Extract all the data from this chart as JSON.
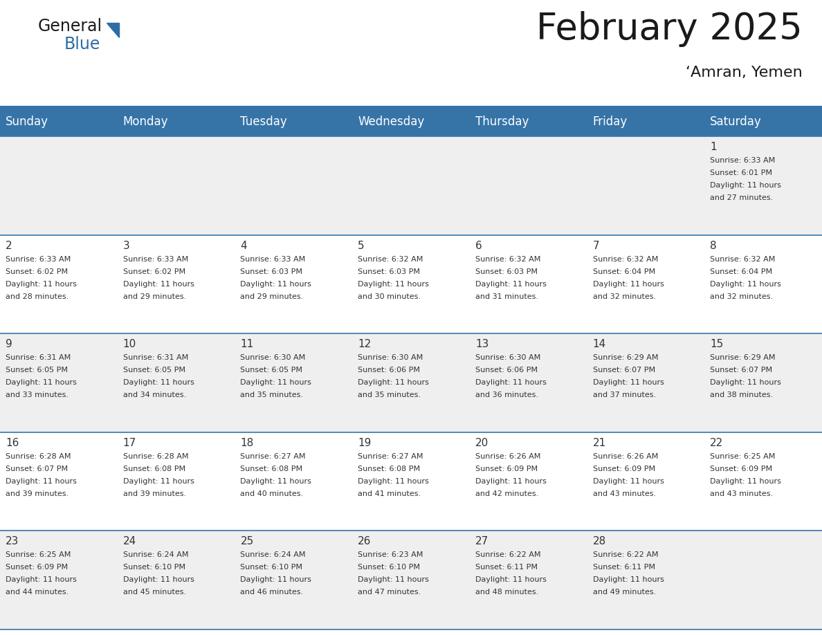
{
  "title": "February 2025",
  "subtitle": "‘Amran, Yemen",
  "days_of_week": [
    "Sunday",
    "Monday",
    "Tuesday",
    "Wednesday",
    "Thursday",
    "Friday",
    "Saturday"
  ],
  "header_bg": "#3674A8",
  "header_text": "#FFFFFF",
  "row_bg_gray": "#EFEFEF",
  "row_bg_white": "#FFFFFF",
  "cell_text": "#333333",
  "day_num_color": "#333333",
  "border_color": "#3674A8",
  "title_color": "#1a1a1a",
  "subtitle_color": "#1a1a1a",
  "logo_color_general": "#1a1a1a",
  "logo_color_blue": "#2E6DA4",
  "logo_triangle_color": "#2E6DA4",
  "calendar": [
    [
      null,
      null,
      null,
      null,
      null,
      null,
      1
    ],
    [
      2,
      3,
      4,
      5,
      6,
      7,
      8
    ],
    [
      9,
      10,
      11,
      12,
      13,
      14,
      15
    ],
    [
      16,
      17,
      18,
      19,
      20,
      21,
      22
    ],
    [
      23,
      24,
      25,
      26,
      27,
      28,
      null
    ]
  ],
  "sun_data": {
    "1": {
      "sunrise": "6:33 AM",
      "sunset": "6:01 PM",
      "daylight": "11 hours and 27 minutes."
    },
    "2": {
      "sunrise": "6:33 AM",
      "sunset": "6:02 PM",
      "daylight": "11 hours and 28 minutes."
    },
    "3": {
      "sunrise": "6:33 AM",
      "sunset": "6:02 PM",
      "daylight": "11 hours and 29 minutes."
    },
    "4": {
      "sunrise": "6:33 AM",
      "sunset": "6:03 PM",
      "daylight": "11 hours and 29 minutes."
    },
    "5": {
      "sunrise": "6:32 AM",
      "sunset": "6:03 PM",
      "daylight": "11 hours and 30 minutes."
    },
    "6": {
      "sunrise": "6:32 AM",
      "sunset": "6:03 PM",
      "daylight": "11 hours and 31 minutes."
    },
    "7": {
      "sunrise": "6:32 AM",
      "sunset": "6:04 PM",
      "daylight": "11 hours and 32 minutes."
    },
    "8": {
      "sunrise": "6:32 AM",
      "sunset": "6:04 PM",
      "daylight": "11 hours and 32 minutes."
    },
    "9": {
      "sunrise": "6:31 AM",
      "sunset": "6:05 PM",
      "daylight": "11 hours and 33 minutes."
    },
    "10": {
      "sunrise": "6:31 AM",
      "sunset": "6:05 PM",
      "daylight": "11 hours and 34 minutes."
    },
    "11": {
      "sunrise": "6:30 AM",
      "sunset": "6:05 PM",
      "daylight": "11 hours and 35 minutes."
    },
    "12": {
      "sunrise": "6:30 AM",
      "sunset": "6:06 PM",
      "daylight": "11 hours and 35 minutes."
    },
    "13": {
      "sunrise": "6:30 AM",
      "sunset": "6:06 PM",
      "daylight": "11 hours and 36 minutes."
    },
    "14": {
      "sunrise": "6:29 AM",
      "sunset": "6:07 PM",
      "daylight": "11 hours and 37 minutes."
    },
    "15": {
      "sunrise": "6:29 AM",
      "sunset": "6:07 PM",
      "daylight": "11 hours and 38 minutes."
    },
    "16": {
      "sunrise": "6:28 AM",
      "sunset": "6:07 PM",
      "daylight": "11 hours and 39 minutes."
    },
    "17": {
      "sunrise": "6:28 AM",
      "sunset": "6:08 PM",
      "daylight": "11 hours and 39 minutes."
    },
    "18": {
      "sunrise": "6:27 AM",
      "sunset": "6:08 PM",
      "daylight": "11 hours and 40 minutes."
    },
    "19": {
      "sunrise": "6:27 AM",
      "sunset": "6:08 PM",
      "daylight": "11 hours and 41 minutes."
    },
    "20": {
      "sunrise": "6:26 AM",
      "sunset": "6:09 PM",
      "daylight": "11 hours and 42 minutes."
    },
    "21": {
      "sunrise": "6:26 AM",
      "sunset": "6:09 PM",
      "daylight": "11 hours and 43 minutes."
    },
    "22": {
      "sunrise": "6:25 AM",
      "sunset": "6:09 PM",
      "daylight": "11 hours and 43 minutes."
    },
    "23": {
      "sunrise": "6:25 AM",
      "sunset": "6:09 PM",
      "daylight": "11 hours and 44 minutes."
    },
    "24": {
      "sunrise": "6:24 AM",
      "sunset": "6:10 PM",
      "daylight": "11 hours and 45 minutes."
    },
    "25": {
      "sunrise": "6:24 AM",
      "sunset": "6:10 PM",
      "daylight": "11 hours and 46 minutes."
    },
    "26": {
      "sunrise": "6:23 AM",
      "sunset": "6:10 PM",
      "daylight": "11 hours and 47 minutes."
    },
    "27": {
      "sunrise": "6:22 AM",
      "sunset": "6:11 PM",
      "daylight": "11 hours and 48 minutes."
    },
    "28": {
      "sunrise": "6:22 AM",
      "sunset": "6:11 PM",
      "daylight": "11 hours and 49 minutes."
    }
  }
}
